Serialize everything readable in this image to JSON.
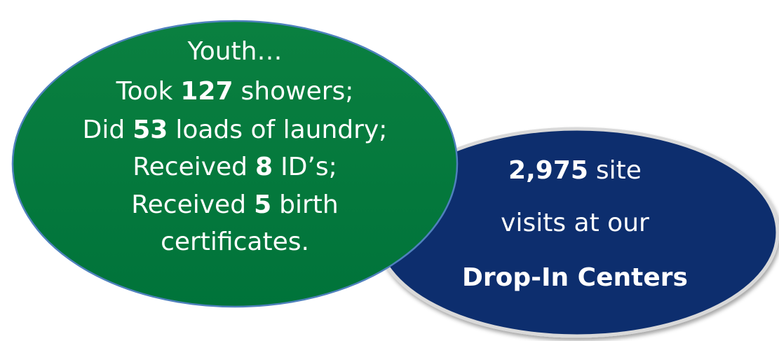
{
  "ellipses": [
    {
      "lines": [
        [
          {
            "text": "Youth…"
          }
        ],
        [
          {
            "text": "Took"
          },
          {
            "text": "127",
            "bold": true
          },
          {
            "text": "showers;"
          }
        ],
        [
          {
            "text": "Did"
          },
          {
            "text": "53",
            "bold": true
          },
          {
            "text": "loads of laundry;"
          }
        ],
        [
          {
            "text": "Received"
          },
          {
            "text": "8",
            "bold": true
          },
          {
            "text": "ID’s;"
          }
        ],
        [
          {
            "text": "Received"
          },
          {
            "text": "5",
            "bold": true
          },
          {
            "text": "birth"
          }
        ],
        [
          {
            "text": "certificates."
          }
        ]
      ]
    },
    {
      "lines": [
        [
          {
            "text": "2,975",
            "bold": true
          },
          {
            "text": "site"
          }
        ],
        [
          {
            "text": "visits at our"
          }
        ],
        [
          {
            "text": "Drop-In Centers",
            "bold": true
          }
        ]
      ]
    }
  ]
}
